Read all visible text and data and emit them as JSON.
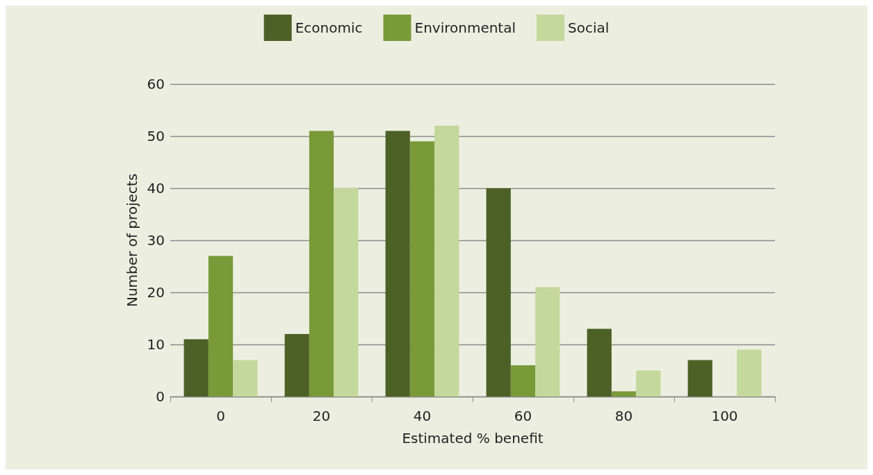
{
  "chart_data": {
    "type": "bar",
    "xlabel": "Estimated % benefit",
    "ylabel": "Number of projects",
    "categories": [
      "0",
      "20",
      "40",
      "60",
      "80",
      "100"
    ],
    "series": [
      {
        "name": "Economic",
        "color": "#4d6127",
        "values": [
          11,
          12,
          51,
          40,
          13,
          7
        ]
      },
      {
        "name": "Environmental",
        "color": "#7a9a3a",
        "values": [
          27,
          51,
          49,
          6,
          1,
          0
        ]
      },
      {
        "name": "Social",
        "color": "#c4d89c",
        "values": [
          7,
          40,
          52,
          21,
          5,
          9
        ]
      }
    ],
    "ylim": [
      0,
      60
    ],
    "yticks": [
      0,
      10,
      20,
      30,
      40,
      50,
      60
    ],
    "grid": "y",
    "legend": "top"
  }
}
